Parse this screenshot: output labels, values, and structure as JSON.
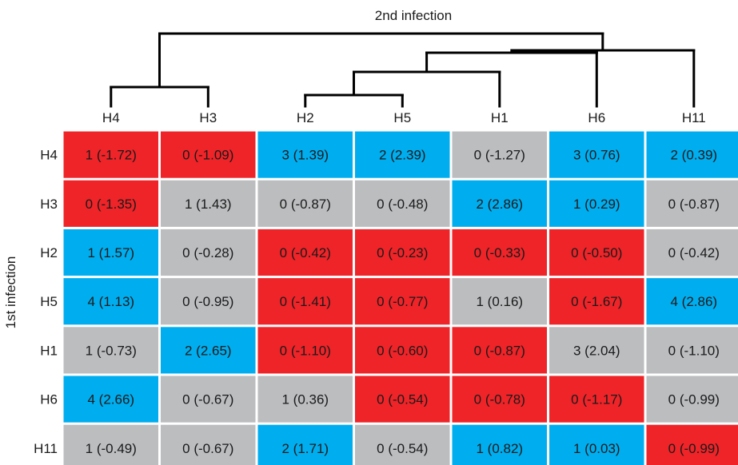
{
  "chart_data": {
    "type": "heatmap",
    "title": "2nd infection",
    "ylabel": "1st infection",
    "xlabel": "",
    "columns": [
      "H4",
      "H3",
      "H2",
      "H5",
      "H1",
      "H6",
      "H11"
    ],
    "rows": [
      "H4",
      "H3",
      "H2",
      "H5",
      "H1",
      "H6",
      "H11"
    ],
    "cells": [
      [
        {
          "count": 1,
          "score": -1.72,
          "label": "1 (-1.72)",
          "category": "red"
        },
        {
          "count": 0,
          "score": -1.09,
          "label": "0 (-1.09)",
          "category": "red"
        },
        {
          "count": 3,
          "score": 1.39,
          "label": "3 (1.39)",
          "category": "blue"
        },
        {
          "count": 2,
          "score": 2.39,
          "label": "2 (2.39)",
          "category": "blue"
        },
        {
          "count": 0,
          "score": -1.27,
          "label": "0 (-1.27)",
          "category": "gray"
        },
        {
          "count": 3,
          "score": 0.76,
          "label": "3 (0.76)",
          "category": "blue"
        },
        {
          "count": 2,
          "score": 0.39,
          "label": "2 (0.39)",
          "category": "blue"
        }
      ],
      [
        {
          "count": 0,
          "score": -1.35,
          "label": "0 (-1.35)",
          "category": "red"
        },
        {
          "count": 1,
          "score": 1.43,
          "label": "1 (1.43)",
          "category": "gray"
        },
        {
          "count": 0,
          "score": -0.87,
          "label": "0 (-0.87)",
          "category": "gray"
        },
        {
          "count": 0,
          "score": -0.48,
          "label": "0 (-0.48)",
          "category": "gray"
        },
        {
          "count": 2,
          "score": 2.86,
          "label": "2 (2.86)",
          "category": "blue"
        },
        {
          "count": 1,
          "score": 0.29,
          "label": "1 (0.29)",
          "category": "blue"
        },
        {
          "count": 0,
          "score": -0.87,
          "label": "0 (-0.87)",
          "category": "gray"
        }
      ],
      [
        {
          "count": 1,
          "score": 1.57,
          "label": "1 (1.57)",
          "category": "blue"
        },
        {
          "count": 0,
          "score": -0.28,
          "label": "0 (-0.28)",
          "category": "gray"
        },
        {
          "count": 0,
          "score": -0.42,
          "label": "0 (-0.42)",
          "category": "red"
        },
        {
          "count": 0,
          "score": -0.23,
          "label": "0 (-0.23)",
          "category": "red"
        },
        {
          "count": 0,
          "score": -0.33,
          "label": "0 (-0.33)",
          "category": "red"
        },
        {
          "count": 0,
          "score": -0.5,
          "label": "0 (-0.50)",
          "category": "red"
        },
        {
          "count": 0,
          "score": -0.42,
          "label": "0 (-0.42)",
          "category": "gray"
        }
      ],
      [
        {
          "count": 4,
          "score": 1.13,
          "label": "4 (1.13)",
          "category": "blue"
        },
        {
          "count": 0,
          "score": -0.95,
          "label": "0 (-0.95)",
          "category": "gray"
        },
        {
          "count": 0,
          "score": -1.41,
          "label": "0 (-1.41)",
          "category": "red"
        },
        {
          "count": 0,
          "score": -0.77,
          "label": "0 (-0.77)",
          "category": "red"
        },
        {
          "count": 1,
          "score": 0.16,
          "label": "1 (0.16)",
          "category": "gray"
        },
        {
          "count": 0,
          "score": -1.67,
          "label": "0 (-1.67)",
          "category": "red"
        },
        {
          "count": 4,
          "score": 2.86,
          "label": "4 (2.86)",
          "category": "blue"
        }
      ],
      [
        {
          "count": 1,
          "score": -0.73,
          "label": "1 (-0.73)",
          "category": "gray"
        },
        {
          "count": 2,
          "score": 2.65,
          "label": "2 (2.65)",
          "category": "blue"
        },
        {
          "count": 0,
          "score": -1.1,
          "label": "0 (-1.10)",
          "category": "red"
        },
        {
          "count": 0,
          "score": -0.6,
          "label": "0 (-0.60)",
          "category": "red"
        },
        {
          "count": 0,
          "score": -0.87,
          "label": "0 (-0.87)",
          "category": "red"
        },
        {
          "count": 3,
          "score": 2.04,
          "label": "3 (2.04)",
          "category": "gray"
        },
        {
          "count": 0,
          "score": -1.1,
          "label": "0 (-1.10)",
          "category": "gray"
        }
      ],
      [
        {
          "count": 4,
          "score": 2.66,
          "label": "4 (2.66)",
          "category": "blue"
        },
        {
          "count": 0,
          "score": -0.67,
          "label": "0 (-0.67)",
          "category": "gray"
        },
        {
          "count": 1,
          "score": 0.36,
          "label": "1 (0.36)",
          "category": "gray"
        },
        {
          "count": 0,
          "score": -0.54,
          "label": "0 (-0.54)",
          "category": "red"
        },
        {
          "count": 0,
          "score": -0.78,
          "label": "0 (-0.78)",
          "category": "red"
        },
        {
          "count": 0,
          "score": -1.17,
          "label": "0 (-1.17)",
          "category": "red"
        },
        {
          "count": 0,
          "score": -0.99,
          "label": "0 (-0.99)",
          "category": "gray"
        }
      ],
      [
        {
          "count": 1,
          "score": -0.49,
          "label": "1 (-0.49)",
          "category": "gray"
        },
        {
          "count": 0,
          "score": -0.67,
          "label": "0 (-0.67)",
          "category": "gray"
        },
        {
          "count": 2,
          "score": 1.71,
          "label": "2 (1.71)",
          "category": "blue"
        },
        {
          "count": 0,
          "score": -0.54,
          "label": "0 (-0.54)",
          "category": "gray"
        },
        {
          "count": 1,
          "score": 0.82,
          "label": "1 (0.82)",
          "category": "blue"
        },
        {
          "count": 1,
          "score": 0.03,
          "label": "1 (0.03)",
          "category": "blue"
        },
        {
          "count": 0,
          "score": -0.99,
          "label": "0 (-0.99)",
          "category": "red"
        }
      ]
    ],
    "dendrogram": {
      "leaf_order": [
        "H4",
        "H3",
        "H2",
        "H5",
        "H1",
        "H6",
        "H11"
      ],
      "merges": [
        {
          "left": "H4",
          "right": "H3"
        },
        {
          "left": "H2",
          "right": "H5"
        },
        {
          "left": "(H2,H5)",
          "right": "H1"
        },
        {
          "left": "((H2,H5),H1)",
          "right": "H6"
        },
        {
          "left": "(((H2,H5),H1),H6)",
          "right": "H11"
        },
        {
          "left": "(H4,H3)",
          "right": "((((H2,H5),H1),H6),H11)"
        }
      ]
    },
    "colors": {
      "red": "#ee2428",
      "blue": "#00aeef",
      "gray": "#bbbdbf",
      "separator": "#ffffff",
      "cell_text": "#231f20",
      "dendrogram": "#000000"
    },
    "legend": "none",
    "grid": false
  }
}
